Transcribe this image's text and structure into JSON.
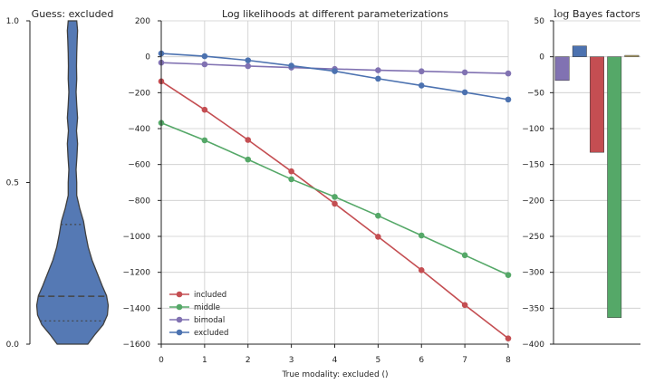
{
  "chart_data": [
    {
      "type": "violin",
      "title": "Guess: excluded",
      "ylim": [
        0.0,
        1.0
      ],
      "yticks": [
        0.0,
        0.5,
        1.0
      ],
      "ytick_labels": [
        "0.0",
        "0.5",
        "1.0"
      ],
      "grid": false,
      "color": "#4c72b0",
      "median": 0.148,
      "quartiles": [
        0.072,
        0.37
      ],
      "density_profile": [
        {
          "y": 0.0,
          "halfwidth": 0.36
        },
        {
          "y": 0.03,
          "halfwidth": 0.53
        },
        {
          "y": 0.06,
          "halfwidth": 0.72
        },
        {
          "y": 0.09,
          "halfwidth": 0.82
        },
        {
          "y": 0.12,
          "halfwidth": 0.84
        },
        {
          "y": 0.15,
          "halfwidth": 0.8
        },
        {
          "y": 0.18,
          "halfwidth": 0.7
        },
        {
          "y": 0.22,
          "halfwidth": 0.58
        },
        {
          "y": 0.26,
          "halfwidth": 0.46
        },
        {
          "y": 0.3,
          "halfwidth": 0.37
        },
        {
          "y": 0.34,
          "halfwidth": 0.31
        },
        {
          "y": 0.38,
          "halfwidth": 0.26
        },
        {
          "y": 0.42,
          "halfwidth": 0.17
        },
        {
          "y": 0.46,
          "halfwidth": 0.1
        },
        {
          "y": 0.5,
          "halfwidth": 0.1
        },
        {
          "y": 0.54,
          "halfwidth": 0.085
        },
        {
          "y": 0.58,
          "halfwidth": 0.105
        },
        {
          "y": 0.62,
          "halfwidth": 0.12
        },
        {
          "y": 0.66,
          "halfwidth": 0.095
        },
        {
          "y": 0.7,
          "halfwidth": 0.12
        },
        {
          "y": 0.74,
          "halfwidth": 0.1
        },
        {
          "y": 0.78,
          "halfwidth": 0.085
        },
        {
          "y": 0.82,
          "halfwidth": 0.1
        },
        {
          "y": 0.86,
          "halfwidth": 0.095
        },
        {
          "y": 0.9,
          "halfwidth": 0.1
        },
        {
          "y": 0.94,
          "halfwidth": 0.11
        },
        {
          "y": 0.97,
          "halfwidth": 0.12
        },
        {
          "y": 1.0,
          "halfwidth": 0.1
        }
      ]
    },
    {
      "type": "line",
      "title": "Log likelihoods at different parameterizations",
      "xlabel": "True modality: excluded ()",
      "ylabel": "",
      "xlim": [
        0,
        8
      ],
      "ylim": [
        -1600,
        200
      ],
      "xticks": [
        0,
        1,
        2,
        3,
        4,
        5,
        6,
        7,
        8
      ],
      "yticks": [
        -1600,
        -1400,
        -1200,
        -1000,
        -800,
        -600,
        -400,
        -200,
        0,
        200
      ],
      "ytick_labels": [
        "−1600",
        "−1400",
        "−1200",
        "−1000",
        "−800",
        "−600",
        "−400",
        "−200",
        "0",
        "200"
      ],
      "grid": true,
      "legend_position": "lower-left",
      "x": [
        0,
        1,
        2,
        3,
        4,
        5,
        6,
        7,
        8
      ],
      "series": [
        {
          "name": "included",
          "color": "#c44e52",
          "values": [
            -137,
            -295,
            -463,
            -638,
            -818,
            -1002,
            -1188,
            -1382,
            -1568
          ]
        },
        {
          "name": "middle",
          "color": "#55a868",
          "values": [
            -368,
            -465,
            -572,
            -682,
            -780,
            -885,
            -995,
            -1105,
            -1215
          ]
        },
        {
          "name": "bimodal",
          "color": "#8172b2",
          "values": [
            -33,
            -42,
            -52,
            -60,
            -68,
            -75,
            -81,
            -87,
            -93
          ]
        },
        {
          "name": "excluded",
          "color": "#4c72b0",
          "values": [
            18,
            3,
            -20,
            -50,
            -80,
            -122,
            -160,
            -198,
            -238
          ]
        }
      ]
    },
    {
      "type": "bar",
      "title": "log Bayes factors",
      "title_parts": {
        "math": "log",
        "text": " Bayes factors"
      },
      "ylim": [
        -400,
        50
      ],
      "yticks": [
        -400,
        -350,
        -300,
        -250,
        -200,
        -150,
        -100,
        -50,
        0,
        50
      ],
      "ytick_labels": [
        "−400",
        "−350",
        "−300",
        "−250",
        "−200",
        "−150",
        "−100",
        "−50",
        "0",
        "50"
      ],
      "grid": true,
      "bars": [
        {
          "color": "#8172b2",
          "value": -33
        },
        {
          "color": "#4c72b0",
          "value": 15
        },
        {
          "color": "#c44e52",
          "value": -133
        },
        {
          "color": "#55a868",
          "value": -363
        },
        {
          "color": "#ccb974",
          "value": 2
        }
      ]
    }
  ]
}
